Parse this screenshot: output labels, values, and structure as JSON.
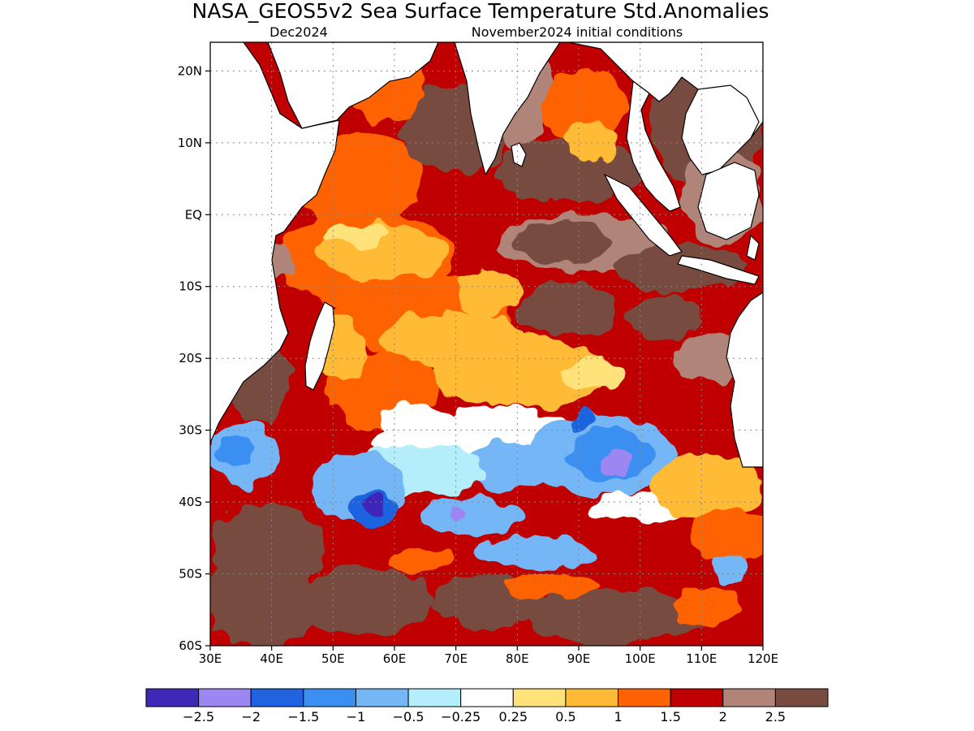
{
  "title": "NASA_GEOS5v2 Sea Surface Temperature Std.Anomalies",
  "subtitle_left": "Dec2024",
  "subtitle_right": "November2024 initial conditions",
  "map": {
    "lon_range": [
      30,
      120
    ],
    "lat_range": [
      -60,
      24
    ],
    "lon_ticks": [
      {
        "value": 30,
        "label": "30E"
      },
      {
        "value": 40,
        "label": "40E"
      },
      {
        "value": 50,
        "label": "50E"
      },
      {
        "value": 60,
        "label": "60E"
      },
      {
        "value": 70,
        "label": "70E"
      },
      {
        "value": 80,
        "label": "80E"
      },
      {
        "value": 90,
        "label": "90E"
      },
      {
        "value": 100,
        "label": "100E"
      },
      {
        "value": 110,
        "label": "110E"
      },
      {
        "value": 120,
        "label": "120E"
      }
    ],
    "lat_ticks": [
      {
        "value": 20,
        "label": "20N"
      },
      {
        "value": 10,
        "label": "10N"
      },
      {
        "value": 0,
        "label": "EQ"
      },
      {
        "value": -10,
        "label": "10S"
      },
      {
        "value": -20,
        "label": "20S"
      },
      {
        "value": -30,
        "label": "30S"
      },
      {
        "value": -40,
        "label": "40S"
      },
      {
        "value": -50,
        "label": "50S"
      },
      {
        "value": -60,
        "label": "60S"
      }
    ],
    "grid": true
  },
  "colorbar": {
    "colors": [
      "#3d28b8",
      "#9c87f2",
      "#1f63e0",
      "#3a8ff0",
      "#74b6f6",
      "#b3eefa",
      "#ffffff",
      "#ffe27a",
      "#ffbb36",
      "#ff6200",
      "#c00000",
      "#b08478",
      "#784c40"
    ],
    "labels": [
      "−2.5",
      "−2",
      "−1.5",
      "−1",
      "−0.5",
      "−0.25",
      "0.25",
      "0.5",
      "1",
      "1.5",
      "2",
      "2.5"
    ]
  }
}
